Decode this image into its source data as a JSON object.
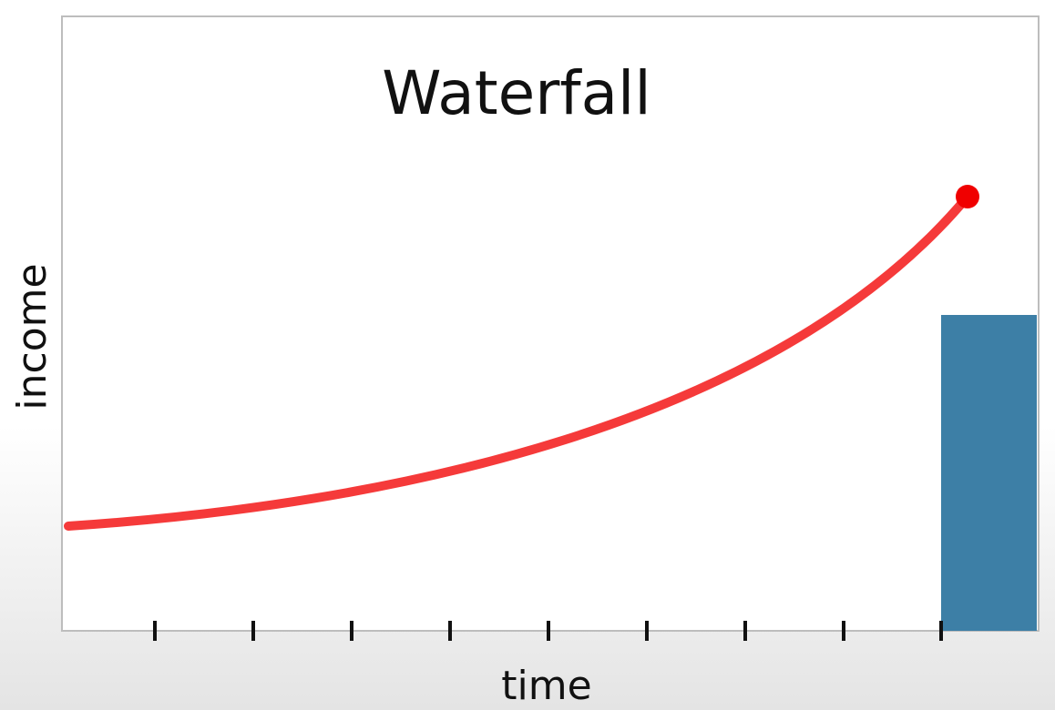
{
  "title": "Waterfall",
  "y_label": "income",
  "x_label": "time"
}
